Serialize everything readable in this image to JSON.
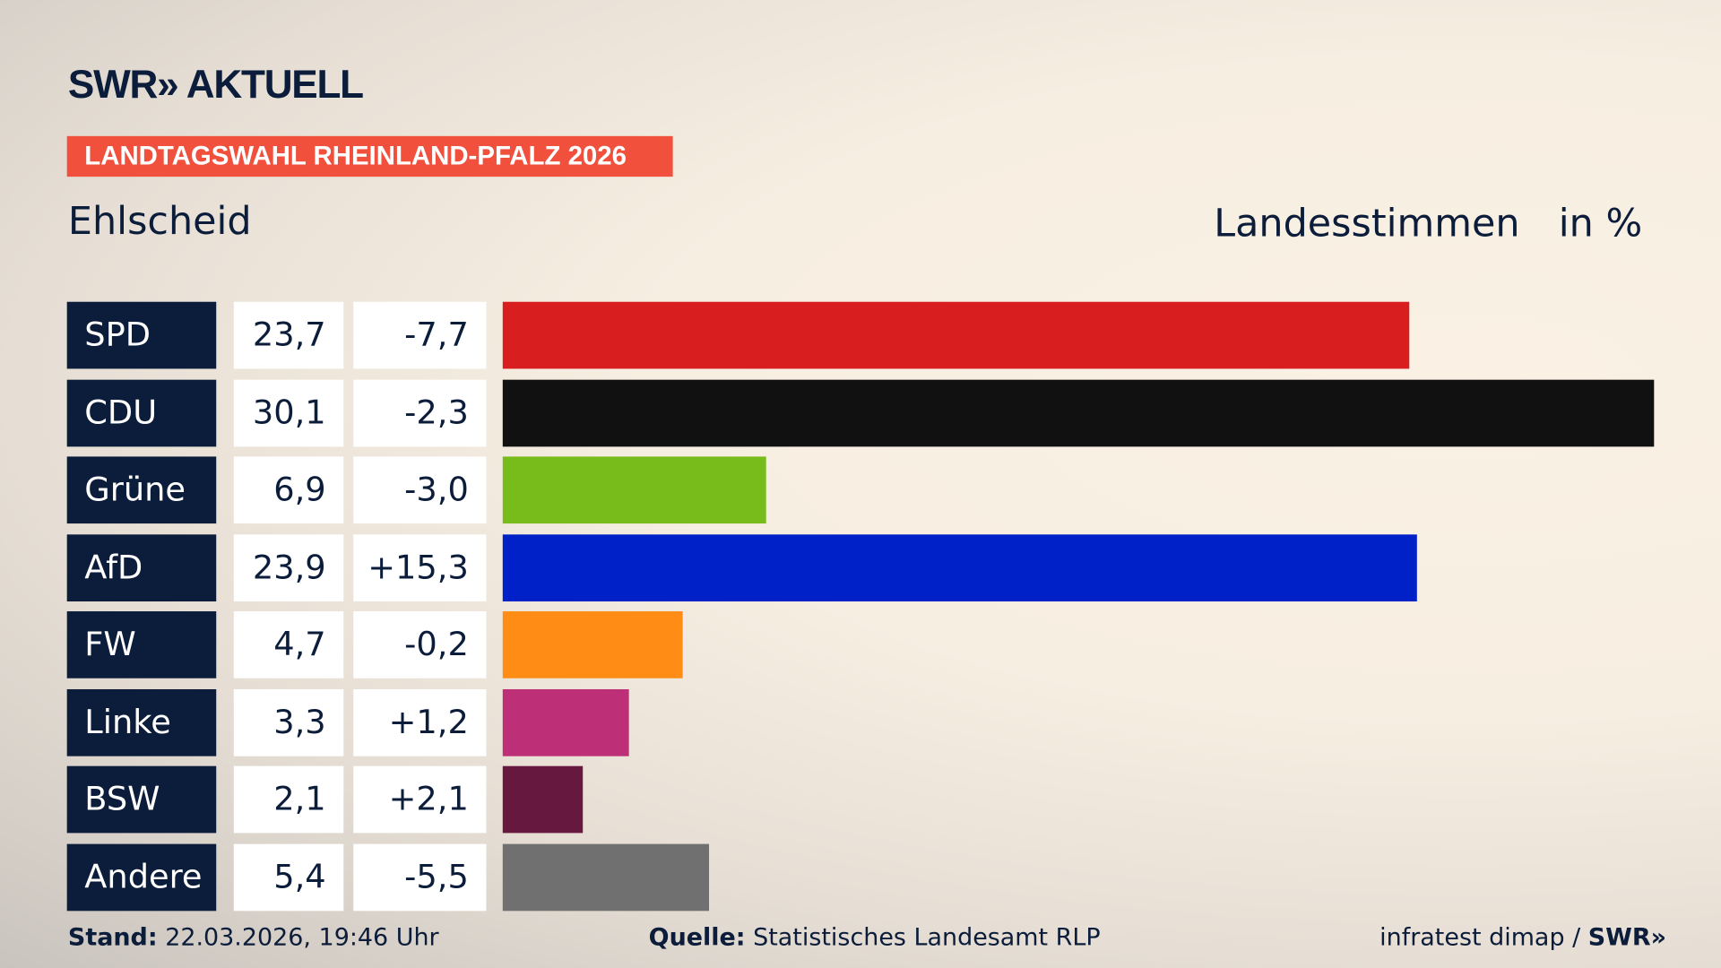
{
  "header": {
    "logo": "SWR» AKTUELL",
    "badge": "LANDTAGSWAHL RHEINLAND-PFALZ 2026",
    "place": "Ehlscheid",
    "metric": "Landesstimmen",
    "unit": "in %"
  },
  "chart_data": {
    "type": "bar",
    "orientation": "horizontal",
    "categories": [
      "SPD",
      "CDU",
      "Grüne",
      "AfD",
      "FW",
      "Linke",
      "BSW",
      "Andere"
    ],
    "values": [
      "23,7",
      "30,1",
      "6,9",
      "23,9",
      "4,7",
      "3,3",
      "2,1",
      "5,4"
    ],
    "changes": [
      "-7,7",
      "-2,3",
      "-3,0",
      "+15,3",
      "-0,2",
      "+1,2",
      "+2,1",
      "-5,5"
    ],
    "numeric_values": [
      23.7,
      30.1,
      6.9,
      23.9,
      4.7,
      3.3,
      2.1,
      5.4
    ],
    "colors": [
      "#d81e1e",
      "#111111",
      "#78bc1c",
      "#0021c8",
      "#ff8c14",
      "#bd2f76",
      "#67183e",
      "#707070"
    ],
    "xlim": [
      0,
      30.1
    ]
  },
  "footer": {
    "stand_label": "Stand:",
    "stand_value": "22.03.2026, 19:46 Uhr",
    "source_label": "Quelle:",
    "source_value": "Statistisches Landesamt RLP",
    "credit": "infratest dimap / ",
    "credit_logo": "SWR»"
  }
}
